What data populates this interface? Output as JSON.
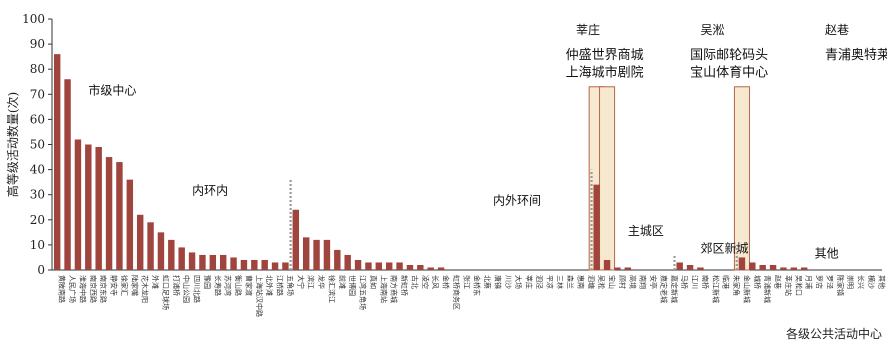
{
  "chart_data": {
    "type": "bar",
    "ylabel": "高等级活动数量(次)",
    "xlabel": "各级公共活动中心",
    "ylim": [
      0,
      100
    ],
    "yticks": [
      0,
      10,
      20,
      30,
      40,
      50,
      60,
      70,
      80,
      90,
      100
    ],
    "grid": false,
    "colors": {
      "bar": "#a0453d",
      "highlight_fill": "#f7e9cf",
      "highlight_stroke": "#b4654e",
      "divider": "#999999",
      "axis": "#333333"
    },
    "categories": [
      "黄陂南路",
      "人民广场",
      "淮海中路",
      "南京西路",
      "南京东路",
      "静安寺",
      "徐家汇",
      "陆家嘴",
      "花木龙阳",
      "外滩",
      "虹口足球场",
      "打浦桥",
      "中山公园",
      "四川北路",
      "豫园",
      "长寿路",
      "苏河湾",
      "衡山路",
      "曹家渡",
      "上海站汉中路",
      "北外滩",
      "江桥路",
      "五角场",
      "大宁",
      "滨江",
      "龙华",
      "徐汇滨江",
      "前滩",
      "世博园",
      "江湾五角场",
      "真如",
      "上海南站",
      "南方商城",
      "新虹桥",
      "古北",
      "凌空",
      "长风",
      "金桥",
      "虹桥商务区",
      "张江",
      "金桥东",
      "北蔡",
      "唐镇",
      "川沙",
      "大场",
      "莘庄",
      "泗泾",
      "平凉",
      "三林",
      "森兰",
      "惠南",
      "泗塘",
      "吴淞",
      "宝山",
      "顾村",
      "高境",
      "南翔",
      "安亭",
      "嘉定老城",
      "嘉定新城",
      "马桥",
      "江川",
      "南桥",
      "松江新城",
      "临港",
      "朱家角",
      "金山新城",
      "城桥",
      "青浦新城",
      "赵巷",
      "莘庄站",
      "吴淞口",
      "月浦",
      "罗店",
      "罗泾",
      "陈家镇",
      "崇明",
      "长兴",
      "横沙",
      "其他"
    ],
    "values": [
      86,
      76,
      52,
      50,
      49,
      45,
      43,
      36,
      22,
      19,
      15,
      12,
      9,
      7,
      6,
      6,
      6,
      5,
      4,
      4,
      4,
      3,
      3,
      24,
      13,
      12,
      12,
      8,
      6,
      4,
      3,
      3,
      3,
      3,
      2,
      2,
      1,
      1,
      0,
      0,
      0,
      0,
      0,
      0,
      0,
      0,
      0,
      0,
      0,
      0,
      0,
      0,
      34,
      4,
      1,
      1,
      0,
      0,
      0,
      0,
      3,
      2,
      1,
      0,
      0,
      0,
      5,
      3,
      2,
      2,
      1,
      1,
      1,
      0,
      0,
      0,
      0,
      0,
      0,
      0
    ],
    "highlights": [
      {
        "label": "莘庄",
        "index": 52,
        "value": 73
      },
      {
        "label": "吴淞",
        "index": 53,
        "value": 73
      },
      {
        "label": "赵巷",
        "index": 66,
        "value": 73
      }
    ],
    "dividers": [
      {
        "after_index": 22,
        "height": 36
      },
      {
        "after_index": 51,
        "height": 40
      },
      {
        "after_index": 59,
        "height": 6
      },
      {
        "after_index": 65,
        "height": 10
      }
    ],
    "annotations": [
      {
        "text": "市级中心",
        "x_index": 3,
        "y": 70,
        "size": "md"
      },
      {
        "text": "内环内",
        "x_index": 13,
        "y": 30,
        "size": "md"
      },
      {
        "text": "内外环间",
        "x_index": 42,
        "y": 26,
        "size": "md"
      },
      {
        "text": "莘庄",
        "x_index": 50,
        "y": 94,
        "size": "md"
      },
      {
        "text": "仲盛世界商城",
        "x_index": 49,
        "y": 84,
        "size": "lg"
      },
      {
        "text": "上海城市剧院",
        "x_index": 49,
        "y": 77,
        "size": "lg"
      },
      {
        "text": "吴淞",
        "x_index": 62,
        "y": 94,
        "size": "md"
      },
      {
        "text": "国际邮轮码头",
        "x_index": 61,
        "y": 84,
        "size": "lg"
      },
      {
        "text": "宝山体育中心",
        "x_index": 61,
        "y": 77,
        "size": "lg"
      },
      {
        "text": "赵巷",
        "x_index": 74,
        "y": 94,
        "size": "md"
      },
      {
        "text": "青浦奥特莱斯",
        "x_index": 74,
        "y": 84,
        "size": "lg"
      },
      {
        "text": "主城区",
        "x_index": 55,
        "y": 14,
        "size": "md"
      },
      {
        "text": "郊区新城",
        "x_index": 62,
        "y": 7,
        "size": "md"
      },
      {
        "text": "其他",
        "x_index": 73,
        "y": 5,
        "size": "md"
      }
    ]
  }
}
